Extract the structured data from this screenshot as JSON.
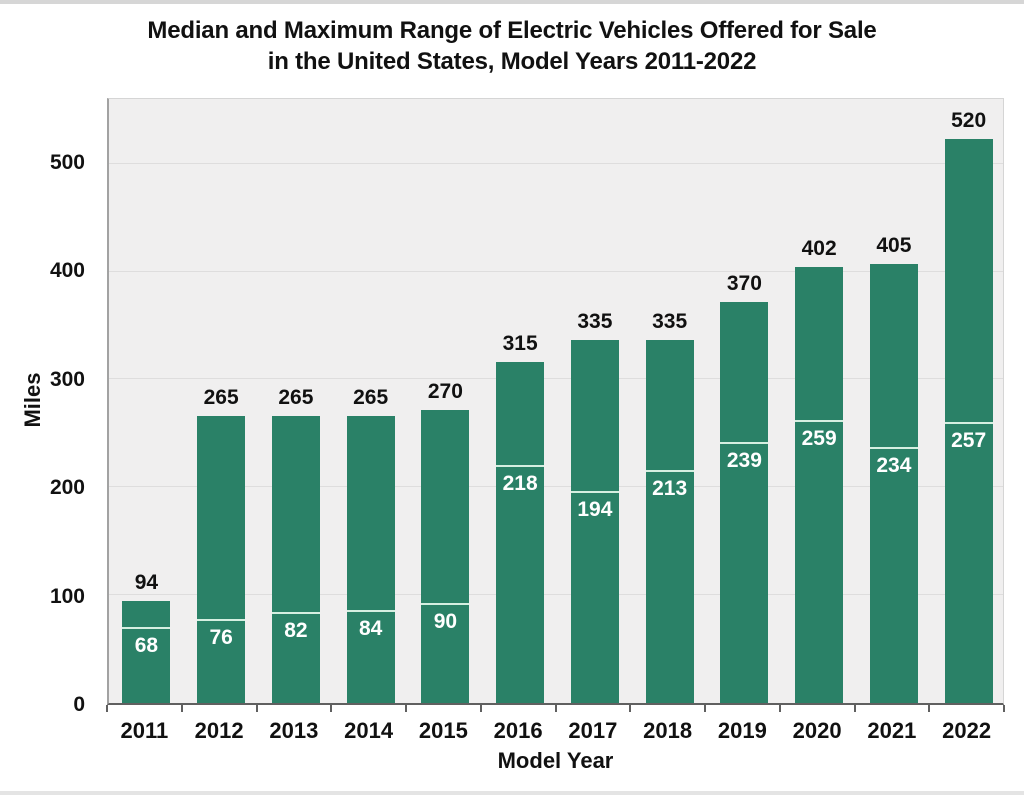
{
  "title": {
    "line1": "Median and Maximum Range of Electric Vehicles Offered for Sale",
    "line2": "in the United States, Model Years 2011-2022"
  },
  "chart_data": {
    "type": "bar",
    "title": "Median and Maximum Range of Electric Vehicles Offered for Sale in the United States, Model Years 2011-2022",
    "categories": [
      "2011",
      "2012",
      "2013",
      "2014",
      "2015",
      "2016",
      "2017",
      "2018",
      "2019",
      "2020",
      "2021",
      "2022"
    ],
    "series": [
      {
        "name": "Maximum range",
        "values": [
          94,
          265,
          265,
          265,
          270,
          315,
          335,
          335,
          370,
          402,
          405,
          520
        ]
      },
      {
        "name": "Median range",
        "values": [
          68,
          76,
          82,
          84,
          90,
          218,
          194,
          213,
          239,
          259,
          234,
          257
        ]
      }
    ],
    "xlabel": "Model Year",
    "ylabel": "Miles",
    "yticks": [
      0,
      100,
      200,
      300,
      400,
      500
    ],
    "ylim": [
      0,
      560
    ],
    "grid": true,
    "legend_position": "none",
    "colors": {
      "bar": "#2a8167",
      "plot_background": "#f0efef",
      "gridline": "#dedddd",
      "median_line": "#d5efe1",
      "max_label": "#111111",
      "median_label": "#ffffff",
      "axis": "#606060"
    }
  }
}
